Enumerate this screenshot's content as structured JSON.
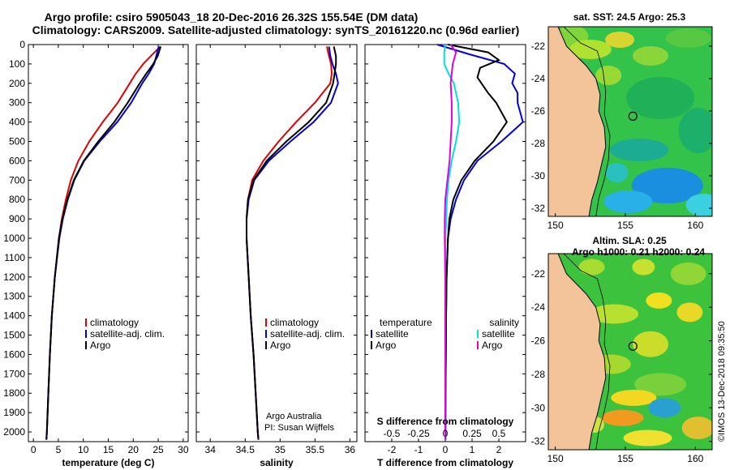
{
  "header": {
    "line1": "Argo profile: csiro 5905043_18 20-Dec-2016 26.32S 155.54E (DM data)",
    "line2": "Climatology: CARS2009. Satellite-adjusted climatology: synTS_20161220.nc (0.96d earlier)"
  },
  "credits": {
    "line1": "Argo Australia",
    "line2": "PI: Susan Wijffels",
    "stamp": "©IMOS 13-Dec-2018 09:35:50"
  },
  "colors": {
    "climatology": "#e00000",
    "satellite": "#0000e0",
    "argo": "#000000",
    "sat_salinity": "#00e0e0",
    "argo_salinity": "#e000e0",
    "land": "#f3c39a"
  },
  "chart_data": [
    {
      "type": "line",
      "id": "temperature",
      "xlabel": "temperature (deg C)",
      "ylabel": "",
      "xlim": [
        -1,
        31
      ],
      "ylim": [
        2050,
        0
      ],
      "xticks": [
        0,
        5,
        10,
        15,
        20,
        25,
        30
      ],
      "xtick_labels": [
        "0",
        "5",
        "10",
        "15",
        "20",
        "25",
        "30"
      ],
      "yticks": [
        0,
        100,
        200,
        300,
        400,
        500,
        600,
        700,
        800,
        900,
        1000,
        1100,
        1200,
        1300,
        1400,
        1500,
        1600,
        1700,
        1800,
        1900,
        2000
      ],
      "ytick_labels": [
        "0",
        "100",
        "200",
        "300",
        "400",
        "500",
        "600",
        "700",
        "800",
        "900",
        "1000",
        "1100",
        "1200",
        "1300",
        "1400",
        "1500",
        "1600",
        "1700",
        "1800",
        "1900",
        "2000"
      ],
      "legend": {
        "position": "lower-right",
        "entries": [
          "climatology",
          "satellite-adj. clim.",
          "Argo"
        ]
      },
      "series": [
        {
          "name": "climatology",
          "color": "#e00000",
          "depth": [
            10,
            60,
            100,
            150,
            200,
            300,
            400,
            500,
            600,
            700,
            800,
            900,
            1000,
            1200,
            1400,
            1600,
            1800,
            2000,
            2040
          ],
          "values": [
            25.4,
            23.5,
            22.0,
            20.5,
            19.3,
            16.9,
            13.9,
            11.2,
            9.0,
            7.5,
            6.5,
            5.7,
            5.1,
            4.3,
            3.7,
            3.3,
            3.0,
            2.7,
            2.6
          ]
        },
        {
          "name": "satellite-adj. clim.",
          "color": "#0000e0",
          "depth": [
            10,
            60,
            100,
            150,
            200,
            300,
            400,
            500,
            600,
            700,
            800,
            900,
            1000,
            1200,
            1400,
            1600,
            1800,
            2000,
            2040
          ],
          "values": [
            25.1,
            24.6,
            24.2,
            23.1,
            21.8,
            19.6,
            16.8,
            13.3,
            10.2,
            8.2,
            6.9,
            5.9,
            5.2,
            4.3,
            3.7,
            3.3,
            3.0,
            2.7,
            2.6
          ]
        },
        {
          "name": "Argo",
          "color": "#000000",
          "depth": [
            10,
            60,
            100,
            150,
            200,
            300,
            400,
            500,
            600,
            700,
            800,
            900,
            1000,
            1200,
            1400,
            1600,
            1800,
            2000,
            2040
          ],
          "values": [
            25.5,
            24.9,
            24.0,
            22.6,
            21.3,
            18.9,
            16.2,
            13.0,
            10.1,
            8.1,
            6.8,
            5.8,
            5.1,
            4.3,
            3.7,
            3.3,
            3.0,
            2.7,
            2.6
          ]
        }
      ]
    },
    {
      "type": "line",
      "id": "salinity",
      "xlabel": "salinity",
      "ylabel": "",
      "xlim": [
        33.8,
        36.1
      ],
      "ylim": [
        2050,
        0
      ],
      "xticks": [
        34,
        34.5,
        35,
        35.5,
        36
      ],
      "xtick_labels": [
        "34",
        "34.5",
        "35",
        "35.5",
        "36"
      ],
      "legend": {
        "position": "lower-right",
        "entries": [
          "climatology",
          "satellite-adj. clim.",
          "Argo"
        ]
      },
      "series": [
        {
          "name": "climatology",
          "color": "#e00000",
          "depth": [
            10,
            60,
            100,
            150,
            200,
            300,
            400,
            500,
            600,
            700,
            800,
            900,
            1000,
            1200,
            1400,
            1600,
            1800,
            2000,
            2040
          ],
          "values": [
            35.67,
            35.7,
            35.73,
            35.74,
            35.72,
            35.5,
            35.23,
            34.98,
            34.76,
            34.6,
            34.54,
            34.52,
            34.52,
            34.55,
            34.58,
            34.62,
            34.65,
            34.68,
            34.69
          ]
        },
        {
          "name": "satellite-adj. clim.",
          "color": "#0000e0",
          "depth": [
            10,
            60,
            100,
            150,
            200,
            300,
            400,
            500,
            600,
            700,
            800,
            900,
            1000,
            1200,
            1400,
            1600,
            1800,
            2000,
            2040
          ],
          "values": [
            35.7,
            35.72,
            35.75,
            35.8,
            35.83,
            35.73,
            35.48,
            35.15,
            34.84,
            34.63,
            34.55,
            34.52,
            34.52,
            34.55,
            34.58,
            34.62,
            34.65,
            34.68,
            34.69
          ]
        },
        {
          "name": "Argo",
          "color": "#000000",
          "depth": [
            10,
            60,
            100,
            150,
            200,
            300,
            400,
            500,
            600,
            700,
            800,
            900,
            1000,
            1200,
            1400,
            1600,
            1800,
            2000,
            2040
          ],
          "values": [
            35.77,
            35.8,
            35.8,
            35.78,
            35.76,
            35.66,
            35.41,
            35.09,
            34.81,
            34.62,
            34.54,
            34.52,
            34.52,
            34.55,
            34.58,
            34.62,
            34.65,
            34.68,
            34.69
          ]
        }
      ]
    },
    {
      "type": "line",
      "id": "difference",
      "xlabel": "T difference from climatology",
      "top_axis_label": "S difference from climatology",
      "xlim": [
        -3,
        3
      ],
      "ylim": [
        2050,
        0
      ],
      "xticks": [
        -2,
        -1,
        0,
        1,
        2
      ],
      "xtick_labels": [
        "-2",
        "-1",
        "0",
        "1",
        "2"
      ],
      "top_ticks": [
        -0.5,
        -0.25,
        0,
        0.25,
        0.5
      ],
      "top_tick_labels": [
        "-0.5",
        "-0.25",
        "0",
        "0.25",
        "0.5"
      ],
      "legend": {
        "position": "lower",
        "headers": [
          "temperature",
          "salinity"
        ],
        "entries": [
          "satellite",
          "Argo",
          "satellite",
          "Argo"
        ]
      },
      "series": [
        {
          "name": "temperature satellite",
          "color": "#0000e0",
          "depth": [
            0,
            50,
            100,
            150,
            200,
            250,
            300,
            400,
            500,
            600,
            700,
            800,
            900,
            1000,
            1200,
            1400,
            1600,
            1800,
            2000,
            2040
          ],
          "values": [
            -0.3,
            0.9,
            2.2,
            2.6,
            2.5,
            2.7,
            2.7,
            2.9,
            2.1,
            1.2,
            0.7,
            0.4,
            0.2,
            0.1,
            0.05,
            0.03,
            0.02,
            0.01,
            0.01,
            0.01
          ]
        },
        {
          "name": "temperature Argo",
          "color": "#000000",
          "depth": [
            0,
            40,
            80,
            120,
            170,
            250,
            300,
            400,
            500,
            600,
            700,
            800,
            900,
            1000,
            1200,
            1400,
            1600,
            1800,
            2000,
            2040
          ],
          "values": [
            0.1,
            1.6,
            2.0,
            1.3,
            1.2,
            1.6,
            1.9,
            2.3,
            1.8,
            1.1,
            0.6,
            0.3,
            0.15,
            0.1,
            0.05,
            0.03,
            0.02,
            0.01,
            0.0,
            0.0
          ]
        },
        {
          "name": "salinity satellite",
          "color": "#00e0e0",
          "depth": [
            0,
            40,
            100,
            150,
            200,
            250,
            300,
            400,
            500,
            600,
            700,
            800,
            900,
            1000,
            1200,
            1400,
            1600,
            1800,
            2000,
            2040
          ],
          "values": [
            0.0,
            -0.01,
            -0.01,
            0.03,
            0.08,
            0.1,
            0.12,
            0.13,
            0.1,
            0.06,
            0.03,
            0.015,
            0.01,
            0.0,
            0.0,
            0.0,
            0.0,
            0.0,
            0.0,
            0.0
          ]
        },
        {
          "name": "salinity Argo",
          "color": "#e000e0",
          "depth": [
            0,
            40,
            100,
            150,
            200,
            300,
            400,
            500,
            600,
            700,
            800,
            900,
            1000,
            1200,
            1400,
            1600,
            1800,
            2000,
            2040
          ],
          "values": [
            0.05,
            0.1,
            0.07,
            0.06,
            0.05,
            0.06,
            0.06,
            0.05,
            0.04,
            0.02,
            0.0,
            -0.005,
            -0.005,
            0.0,
            0.0,
            0.0,
            0.0,
            0.0,
            0.0
          ]
        }
      ]
    },
    {
      "type": "heatmap",
      "id": "sst_map",
      "title": "sat. SST: 24.5 Argo: 25.3",
      "xlim": [
        149.5,
        161.2
      ],
      "ylim": [
        -32.5,
        -20.8
      ],
      "xticks": [
        150,
        155,
        160
      ],
      "xtick_labels": [
        "150",
        "155",
        "160"
      ],
      "yticks": [
        -22,
        -24,
        -26,
        -28,
        -30,
        -32
      ],
      "ytick_labels": [
        "-22",
        "-24",
        "-26",
        "-28",
        "-30",
        "-32"
      ],
      "float_position": {
        "lon": 155.54,
        "lat": -26.32
      }
    },
    {
      "type": "heatmap",
      "id": "sla_map",
      "title_line1": "Altim. SLA: 0.25",
      "title_line2": "Argo h1000: 0.21 h2000: 0.24",
      "xlim": [
        149.5,
        161.2
      ],
      "ylim": [
        -32.5,
        -20.8
      ],
      "xticks": [
        150,
        155,
        160
      ],
      "xtick_labels": [
        "150",
        "155",
        "160"
      ],
      "yticks": [
        -22,
        -24,
        -26,
        -28,
        -30,
        -32
      ],
      "ytick_labels": [
        "-22",
        "-24",
        "-26",
        "-28",
        "-30",
        "-32"
      ],
      "float_position": {
        "lon": 155.54,
        "lat": -26.32
      }
    }
  ]
}
